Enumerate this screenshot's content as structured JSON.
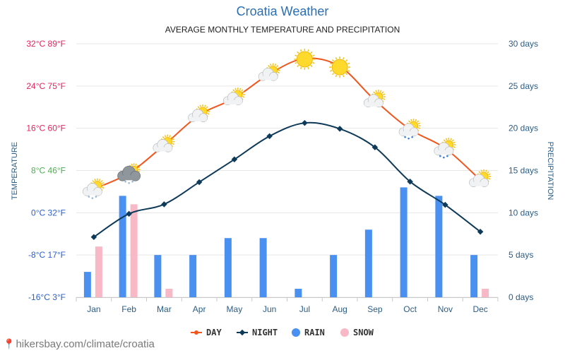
{
  "title": "Croatia Weather",
  "subtitle": "AVERAGE MONTHLY TEMPERATURE AND PRECIPITATION",
  "attribution": "hikersbay.com/climate/croatia",
  "colors": {
    "day": "#f0561d",
    "night": "#0e3a5a",
    "rain": "#4a90f0",
    "snow": "#f8b8c6",
    "title": "#2a6fb3",
    "grid": "#e6e6e6"
  },
  "chart_data": {
    "type": "line+bar",
    "categories": [
      "Jan",
      "Feb",
      "Mar",
      "Apr",
      "May",
      "Jun",
      "Jul",
      "Aug",
      "Sep",
      "Oct",
      "Nov",
      "Dec"
    ],
    "temp_ylim": [
      -16,
      32
    ],
    "precip_ylim": [
      0,
      30
    ],
    "left_axis_title": "TEMPERATURE",
    "right_axis_title": "PRECIPITATION",
    "left_ticks": [
      {
        "value": 32,
        "label": "32°C 89°F",
        "color": "#e0245e"
      },
      {
        "value": 24,
        "label": "24°C 75°F",
        "color": "#e0245e"
      },
      {
        "value": 16,
        "label": "16°C 60°F",
        "color": "#e0245e"
      },
      {
        "value": 8,
        "label": "8°C 46°F",
        "color": "#4caf50"
      },
      {
        "value": 0,
        "label": "0°C 32°F",
        "color": "#2a5fd0"
      },
      {
        "value": -8,
        "label": "-8°C 17°F",
        "color": "#2a5fd0"
      },
      {
        "value": -16,
        "label": "-16°C 3°F",
        "color": "#2a5fd0"
      }
    ],
    "right_ticks": [
      {
        "value": 30,
        "label": "30 days"
      },
      {
        "value": 25,
        "label": "25 days"
      },
      {
        "value": 20,
        "label": "20 days"
      },
      {
        "value": 15,
        "label": "15 days"
      },
      {
        "value": 10,
        "label": "10 days"
      },
      {
        "value": 5,
        "label": "5 days"
      },
      {
        "value": 0,
        "label": "0 days"
      }
    ],
    "series": [
      {
        "name": "DAY",
        "kind": "line",
        "axis": "temp",
        "values": [
          4.5,
          7.5,
          12.8,
          18.5,
          21.7,
          26.3,
          29.2,
          27.7,
          21.3,
          15.8,
          12.2,
          6.2
        ]
      },
      {
        "name": "NIGHT",
        "kind": "line",
        "axis": "temp",
        "values": [
          -4.6,
          -0.2,
          1.6,
          5.8,
          10.1,
          14.5,
          17.0,
          15.9,
          12.4,
          5.9,
          1.5,
          -3.6
        ]
      },
      {
        "name": "RAIN",
        "kind": "bar",
        "axis": "precip",
        "values": [
          3,
          12,
          5,
          5,
          7,
          7,
          1,
          5,
          8,
          13,
          12,
          5
        ]
      },
      {
        "name": "SNOW",
        "kind": "bar",
        "axis": "precip",
        "values": [
          6,
          11,
          1,
          0,
          0,
          0,
          0,
          0,
          0,
          0,
          0,
          1
        ]
      }
    ],
    "weather_icons": [
      "snow-cloud-sun-icon",
      "snow-cloud-icon",
      "partly-sunny-icon",
      "partly-sunny-icon",
      "partly-sunny-icon",
      "partly-sunny-icon",
      "sun-icon",
      "sun-icon",
      "partly-sunny-icon",
      "rain-cloud-sun-icon",
      "rain-cloud-sun-icon",
      "partly-sunny-icon"
    ],
    "legend": [
      "DAY",
      "NIGHT",
      "RAIN",
      "SNOW"
    ]
  }
}
